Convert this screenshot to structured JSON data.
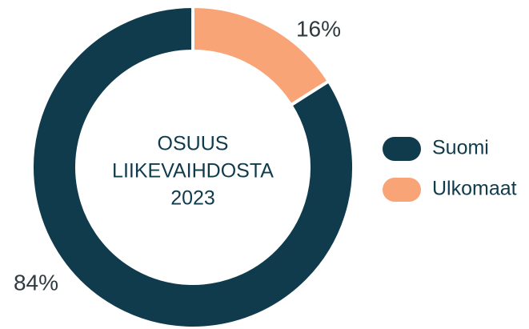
{
  "chart_data": {
    "type": "donut",
    "center_label": [
      "OSUUS",
      "LIIKEVAIHDOSTA",
      "2023"
    ],
    "categories": [
      "Suomi",
      "Ulkomaat"
    ],
    "values": [
      84,
      16
    ],
    "value_labels": [
      "84%",
      "16%"
    ],
    "colors": [
      "#0f3b4d",
      "#f9a476"
    ],
    "legend": "right"
  }
}
